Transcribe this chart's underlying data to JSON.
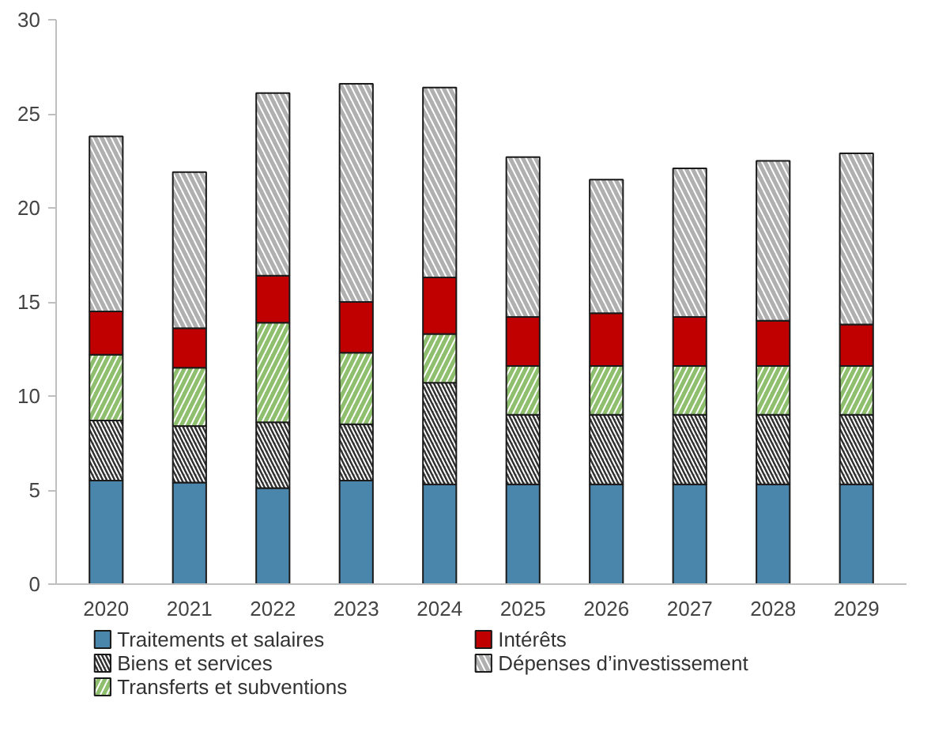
{
  "chart_data": {
    "type": "bar",
    "stacked": true,
    "categories": [
      "2020",
      "2021",
      "2022",
      "2023",
      "2024",
      "2025",
      "2026",
      "2027",
      "2028",
      "2029"
    ],
    "series": [
      {
        "name": "Traitements et salaires",
        "color": "#4a85ab",
        "values": [
          5.5,
          5.4,
          5.1,
          5.5,
          5.3,
          5.3,
          5.3,
          5.3,
          5.3,
          5.3
        ]
      },
      {
        "name": "Biens et services",
        "color": "#303030",
        "values": [
          3.2,
          3.0,
          3.5,
          3.0,
          5.4,
          3.7,
          3.7,
          3.7,
          3.7,
          3.7
        ]
      },
      {
        "name": "Transferts et subventions",
        "color": "#8dbf6e",
        "values": [
          3.5,
          3.1,
          5.3,
          3.8,
          2.6,
          2.6,
          2.6,
          2.6,
          2.6,
          2.6
        ]
      },
      {
        "name": "Intérêts",
        "color": "#c00000",
        "values": [
          2.3,
          2.1,
          2.5,
          2.7,
          3.0,
          2.6,
          2.8,
          2.6,
          2.4,
          2.2
        ]
      },
      {
        "name": "Dépenses d’investissement",
        "color": "#b0b0b0",
        "values": [
          9.3,
          8.3,
          9.7,
          11.6,
          10.1,
          8.5,
          7.1,
          7.9,
          8.5,
          9.1
        ]
      }
    ],
    "ylim": [
      0,
      30
    ],
    "yticks": [
      0,
      5,
      10,
      15,
      20,
      25,
      30
    ],
    "grid": false,
    "legend": "bottom"
  }
}
